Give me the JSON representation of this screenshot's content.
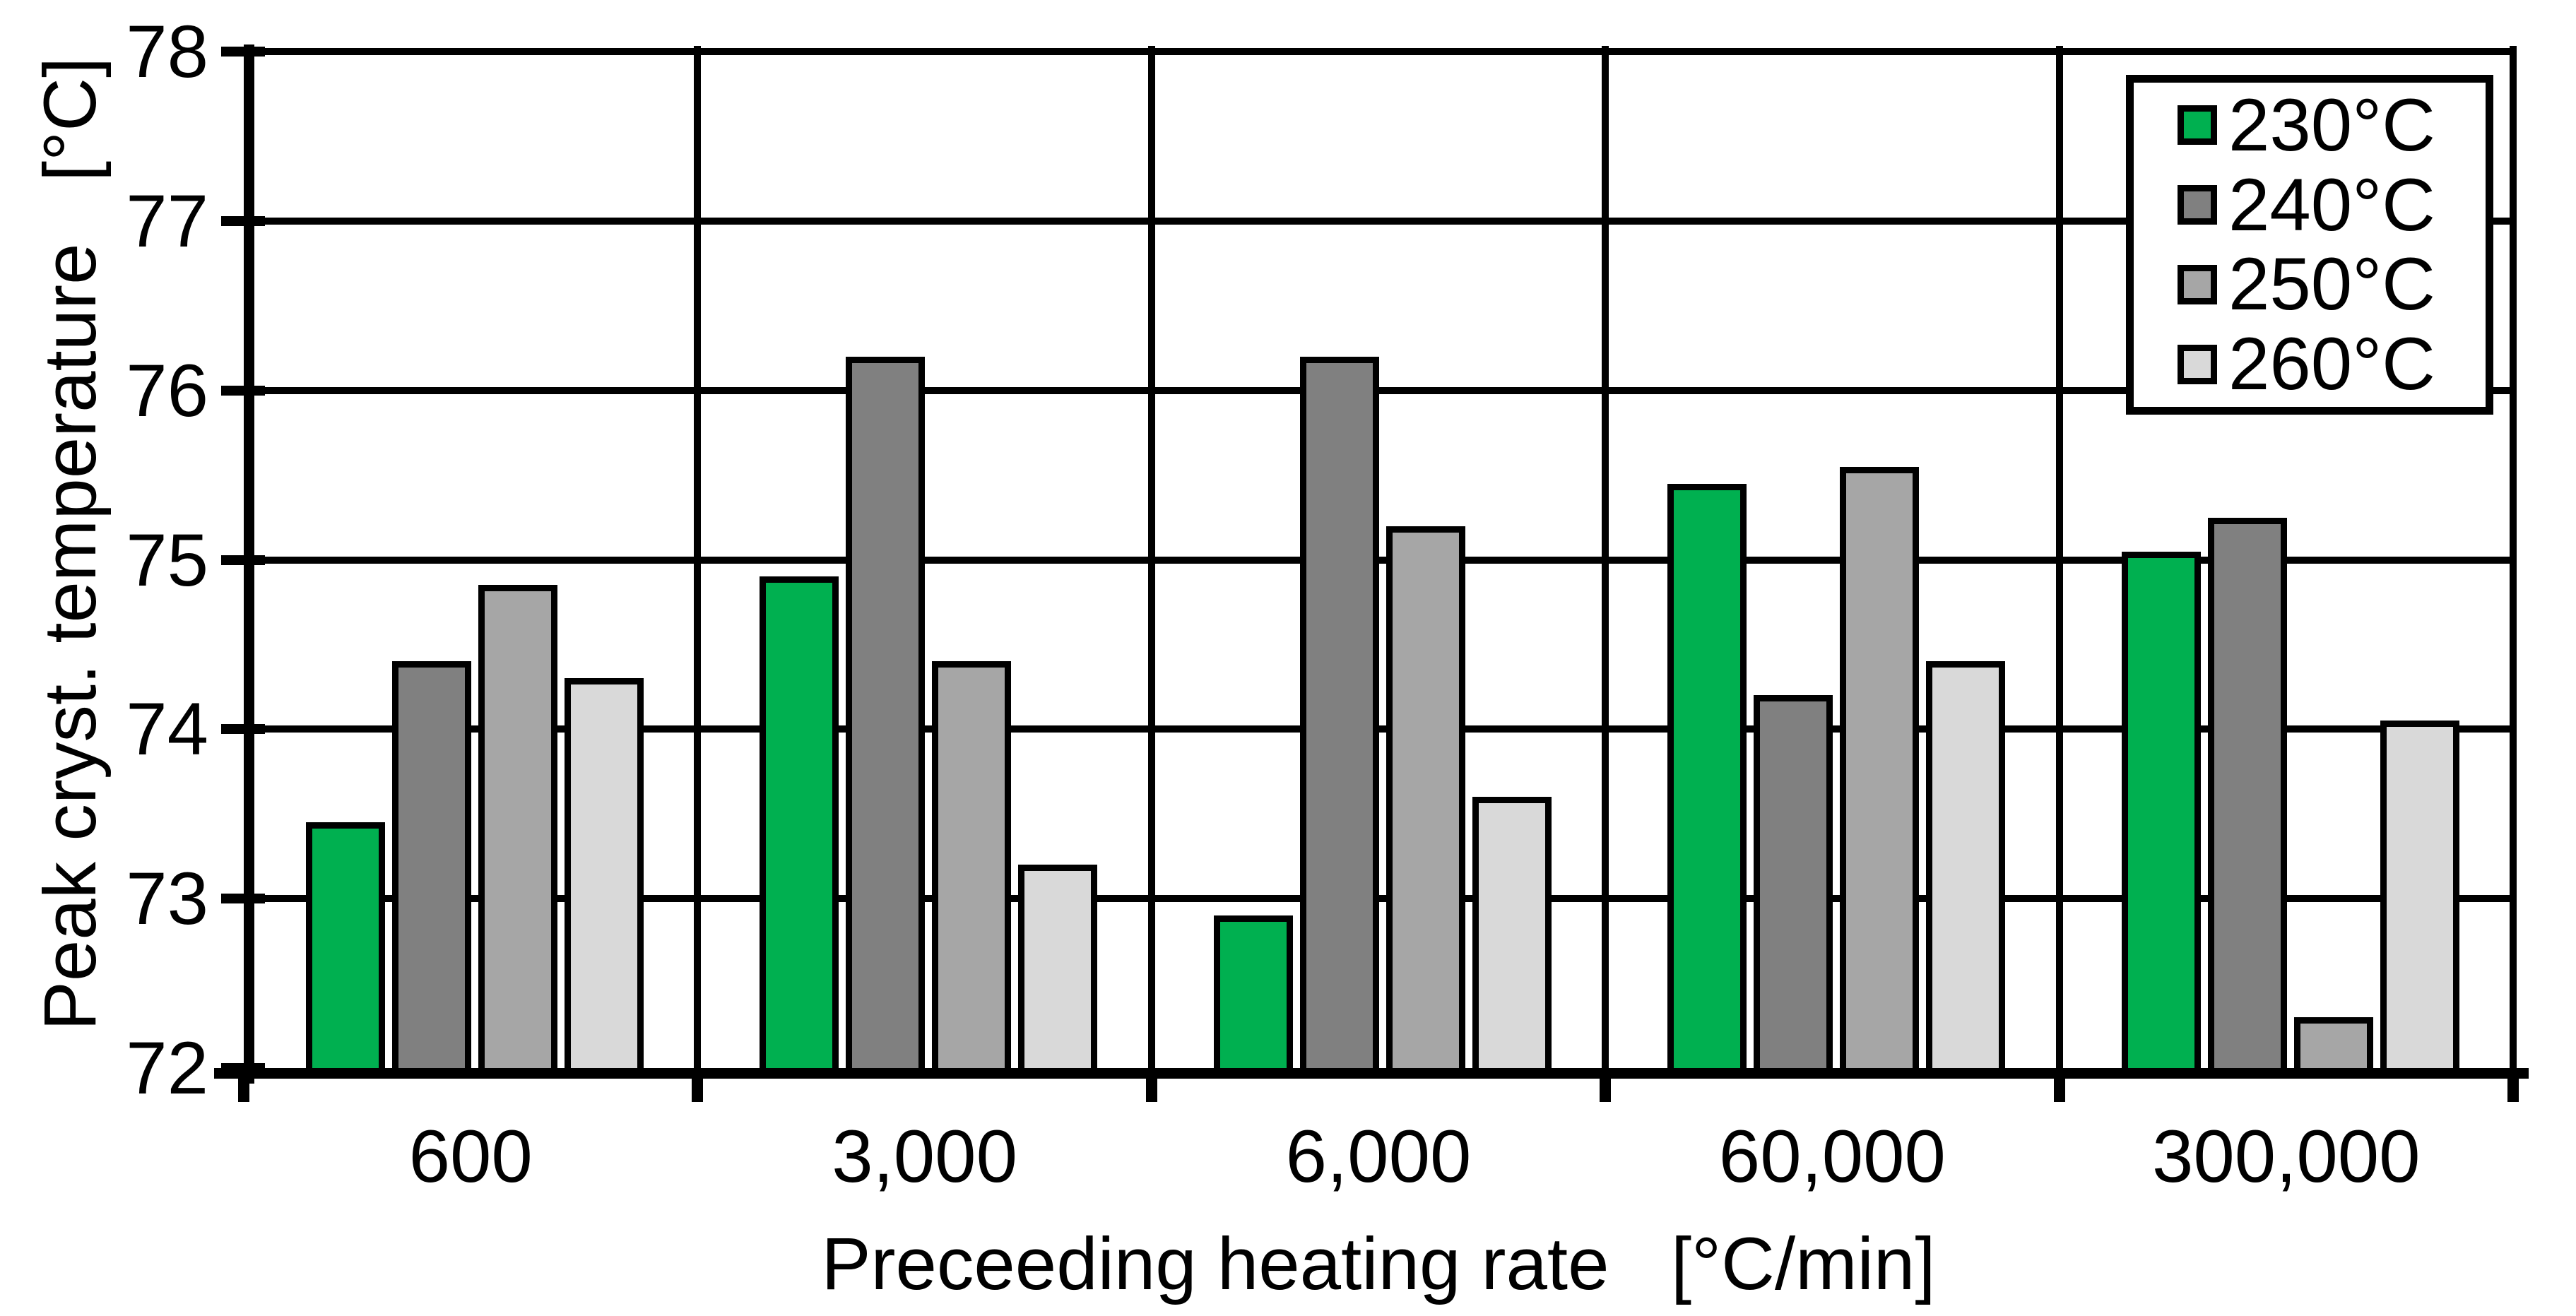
{
  "chart_data": {
    "type": "bar",
    "title": "",
    "xlabel": "Preceeding heating rate   [°C/min]",
    "ylabel": "Peak cryst. temperature   [°C]",
    "categories": [
      "600",
      "3,000",
      "6,000",
      "60,000",
      "300,000"
    ],
    "series": [
      {
        "name": "230°C",
        "color": "#00B050",
        "values": [
          73.45,
          74.9,
          72.9,
          75.45,
          75.05
        ]
      },
      {
        "name": "240°C",
        "color": "#808080",
        "values": [
          74.4,
          76.2,
          76.2,
          74.2,
          75.25
        ]
      },
      {
        "name": "250°C",
        "color": "#A6A6A6",
        "values": [
          74.85,
          74.4,
          75.2,
          75.55,
          72.3
        ]
      },
      {
        "name": "260°C",
        "color": "#D9D9D9",
        "values": [
          74.3,
          73.2,
          73.6,
          74.4,
          74.05
        ]
      }
    ],
    "ylim": [
      72,
      78
    ],
    "yticks": [
      72,
      73,
      74,
      75,
      76,
      77,
      78
    ],
    "grid": true,
    "legend_position": "top-right",
    "axis_color": "#000000",
    "background_color": "#FFFFFF"
  }
}
